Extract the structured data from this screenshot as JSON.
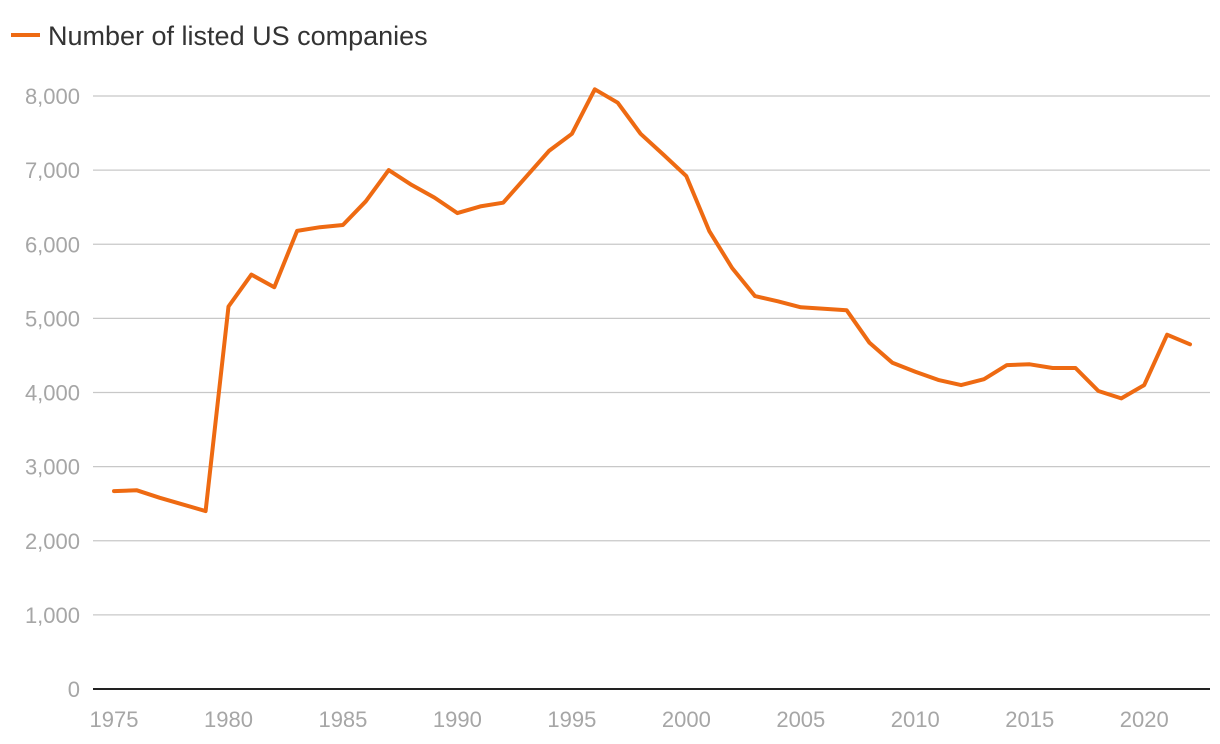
{
  "chart_data": {
    "type": "line",
    "title": "",
    "xlabel": "",
    "ylabel": "",
    "legend_position": "top-left",
    "grid": true,
    "xlim": [
      1975,
      2022
    ],
    "ylim": [
      0,
      8000
    ],
    "x_ticks": [
      1975,
      1980,
      1985,
      1990,
      1995,
      2000,
      2005,
      2010,
      2015,
      2020
    ],
    "y_ticks": [
      0,
      1000,
      2000,
      3000,
      4000,
      5000,
      6000,
      7000,
      8000
    ],
    "x_tick_labels": [
      "1975",
      "1980",
      "1985",
      "1990",
      "1995",
      "2000",
      "2005",
      "2010",
      "2015",
      "2020"
    ],
    "y_tick_labels": [
      "0",
      "1,000",
      "2,000",
      "3,000",
      "4,000",
      "5,000",
      "6,000",
      "7,000",
      "8,000"
    ],
    "x": [
      1975,
      1976,
      1977,
      1978,
      1979,
      1980,
      1981,
      1982,
      1983,
      1984,
      1985,
      1986,
      1987,
      1988,
      1989,
      1990,
      1991,
      1992,
      1993,
      1994,
      1995,
      1996,
      1997,
      1998,
      1999,
      2000,
      2001,
      2002,
      2003,
      2004,
      2005,
      2006,
      2007,
      2008,
      2009,
      2010,
      2011,
      2012,
      2013,
      2014,
      2015,
      2016,
      2017,
      2018,
      2019,
      2020,
      2021,
      2022
    ],
    "series": [
      {
        "name": "Number of listed US companies",
        "color": "#ee6a12",
        "values": [
          2670,
          2680,
          2580,
          2490,
          2400,
          5160,
          5590,
          5420,
          6180,
          6230,
          6260,
          6580,
          7000,
          6800,
          6630,
          6420,
          6510,
          6560,
          6910,
          7260,
          7490,
          8090,
          7910,
          7490,
          7210,
          6920,
          6180,
          5680,
          5300,
          5230,
          5150,
          5130,
          5110,
          4670,
          4400,
          4280,
          4170,
          4100,
          4180,
          4370,
          4380,
          4330,
          4330,
          4020,
          3920,
          4100,
          4780,
          4650
        ]
      }
    ]
  }
}
